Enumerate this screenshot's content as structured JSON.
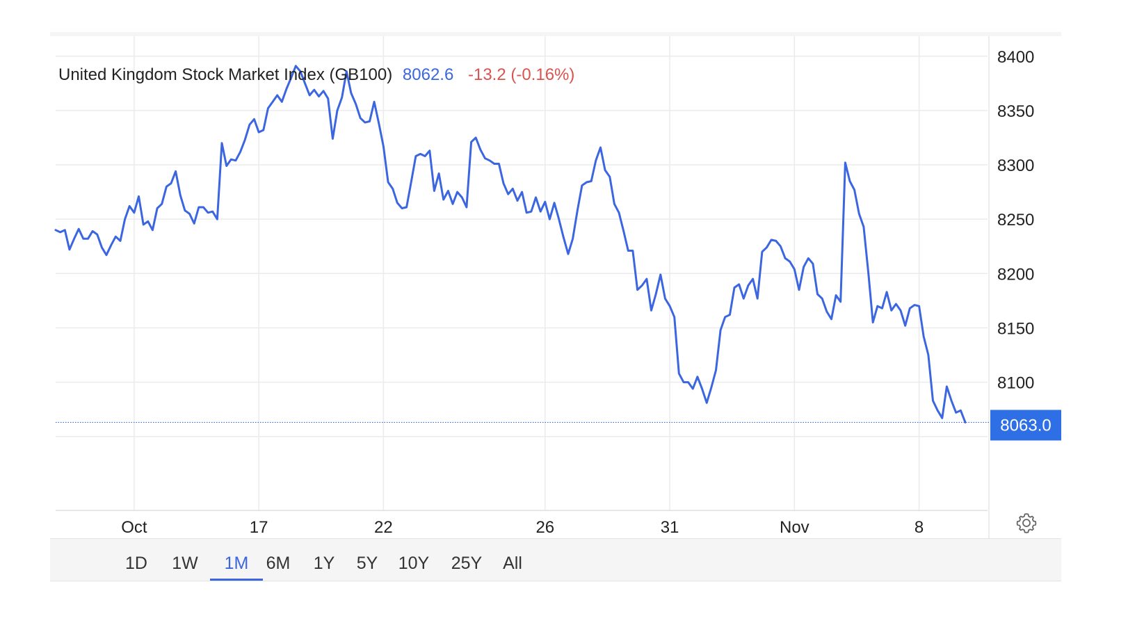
{
  "header": {
    "title": "United Kingdom Stock Market Index (GB100)",
    "price": "8062.6",
    "change": "-13.2 (-0.16%)"
  },
  "last_value_label": "8063.0",
  "range_buttons": [
    {
      "label": "1D",
      "active": false
    },
    {
      "label": "1W",
      "active": false
    },
    {
      "label": "1M",
      "active": true
    },
    {
      "label": "6M",
      "active": false
    },
    {
      "label": "1Y",
      "active": false
    },
    {
      "label": "5Y",
      "active": false
    },
    {
      "label": "10Y",
      "active": false
    },
    {
      "label": "25Y",
      "active": false
    },
    {
      "label": "All",
      "active": false
    }
  ],
  "settings": {
    "icon": "gear-icon"
  },
  "colors": {
    "line": "#3b66e0",
    "price": "#3b66e0",
    "change": "#d9534f",
    "grid": "#ebebeb",
    "badge": "#2f6fe6"
  },
  "chart_data": {
    "type": "line",
    "title": "United Kingdom Stock Market Index (GB100)",
    "xlabel": "",
    "ylabel": "",
    "y_ticks": [
      8100,
      8150,
      8200,
      8250,
      8300,
      8350,
      8400
    ],
    "ylim": [
      7982,
      8412
    ],
    "x_tick_labels": [
      "Oct",
      "17",
      "22",
      "26",
      "31",
      "Nov",
      "8"
    ],
    "x_tick_index": [
      17,
      44,
      71,
      106,
      133,
      160,
      187
    ],
    "grid": true,
    "legend": "none",
    "series": [
      {
        "values": [
          8240,
          8238,
          8240,
          8222,
          8232,
          8241,
          8232,
          8232,
          8239,
          8236,
          8224,
          8217,
          8226,
          8234,
          8230,
          8250,
          8262,
          8256,
          8271,
          8245,
          8248,
          8240,
          8260,
          8264,
          8280,
          8283,
          8294,
          8272,
          8258,
          8255,
          8246,
          8261,
          8261,
          8256,
          8257,
          8250,
          8320,
          8299,
          8305,
          8304,
          8312,
          8323,
          8337,
          8342,
          8330,
          8332,
          8352,
          8358,
          8364,
          8358,
          8370,
          8380,
          8391,
          8386,
          8375,
          8364,
          8369,
          8363,
          8368,
          8361,
          8324,
          8350,
          8362,
          8386,
          8366,
          8356,
          8343,
          8339,
          8340,
          8358,
          8338,
          8317,
          8284,
          8278,
          8265,
          8260,
          8261,
          8284,
          8308,
          8310,
          8308,
          8313,
          8276,
          8292,
          8268,
          8276,
          8264,
          8275,
          8270,
          8261,
          8321,
          8325,
          8314,
          8306,
          8304,
          8301,
          8301,
          8283,
          8273,
          8278,
          8267,
          8275,
          8256,
          8257,
          8270,
          8257,
          8266,
          8250,
          8265,
          8250,
          8233,
          8218,
          8232,
          8258,
          8281,
          8284,
          8285,
          8304,
          8316,
          8295,
          8289,
          8264,
          8256,
          8239,
          8221,
          8221,
          8185,
          8189,
          8195,
          8166,
          8181,
          8199,
          8177,
          8170,
          8160,
          8108,
          8100,
          8100,
          8094,
          8105,
          8094,
          8081,
          8095,
          8111,
          8148,
          8160,
          8162,
          8187,
          8190,
          8177,
          8189,
          8195,
          8177,
          8220,
          8224,
          8231,
          8230,
          8225,
          8214,
          8211,
          8204,
          8185,
          8206,
          8214,
          8209,
          8181,
          8177,
          8165,
          8158,
          8180,
          8174,
          8302,
          8285,
          8277,
          8255,
          8243,
          8201,
          8155,
          8170,
          8168,
          8183,
          8166,
          8172,
          8166,
          8152,
          8168,
          8171,
          8170,
          8142,
          8125,
          8083,
          8074,
          8067,
          8096,
          8083,
          8072,
          8074,
          8063
        ]
      }
    ]
  }
}
